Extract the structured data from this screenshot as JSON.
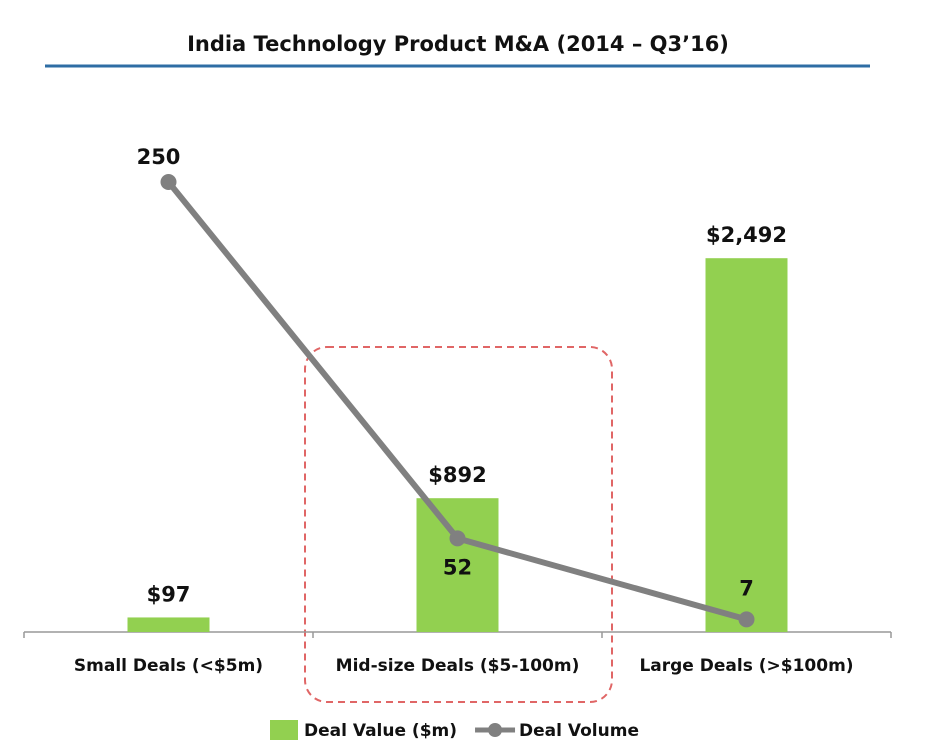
{
  "chart_data": {
    "type": "bar-line",
    "title": "India Technology Product M&A (2014 – Q3’16)",
    "categories": [
      "Small Deals (<$5m)",
      "Mid-size Deals ($5-100m)",
      "Large Deals (>$100m)"
    ],
    "series": [
      {
        "name": "Deal Value ($m)",
        "type": "bar",
        "color": "#92d050",
        "values": [
          97,
          892,
          2492
        ],
        "value_labels": [
          "$97",
          "$892",
          "$2,492"
        ]
      },
      {
        "name": "Deal Volume",
        "type": "line",
        "axis": "y2",
        "color": "#808080",
        "values": [
          250,
          52,
          7
        ]
      }
    ],
    "ylim": [
      0,
      3000
    ],
    "y2lim": [
      0,
      250
    ],
    "legend": "bottom"
  }
}
